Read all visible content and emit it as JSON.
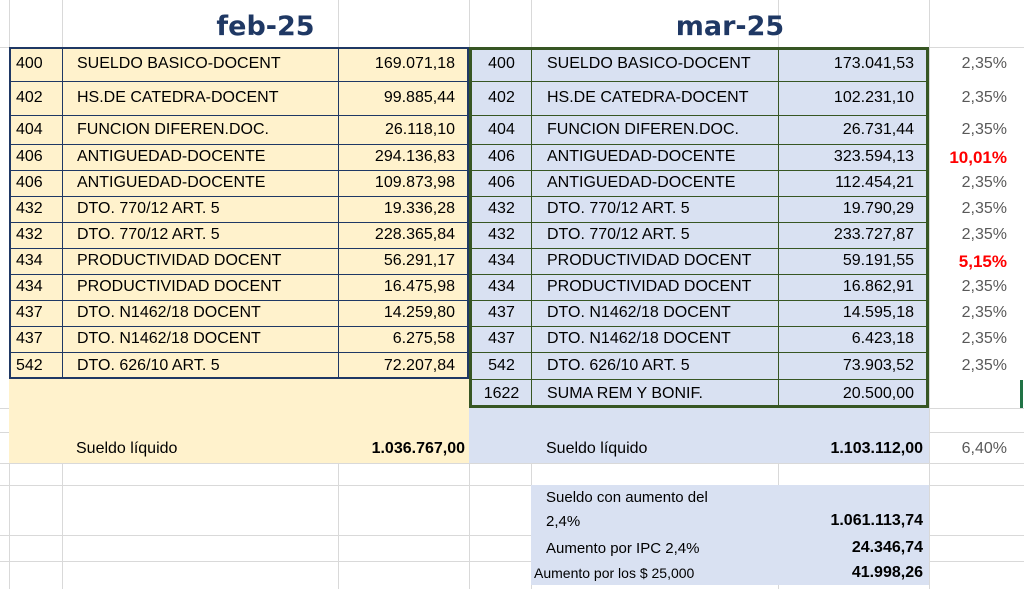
{
  "headers": {
    "feb": "feb-25",
    "mar": "mar-25"
  },
  "feb_rows": [
    {
      "code": "400",
      "concept": "SUELDO BASICO-DOCENT",
      "amount": "169.071,18"
    },
    {
      "code": "402",
      "concept": "HS.DE CATEDRA-DOCENT",
      "amount": "99.885,44"
    },
    {
      "code": "404",
      "concept": "FUNCION DIFEREN.DOC.",
      "amount": "26.118,10"
    },
    {
      "code": "406",
      "concept": "ANTIGUEDAD-DOCENTE",
      "amount": "294.136,83"
    },
    {
      "code": "406",
      "concept": "ANTIGUEDAD-DOCENTE",
      "amount": "109.873,98"
    },
    {
      "code": "432",
      "concept": "DTO. 770/12 ART. 5",
      "amount": "19.336,28"
    },
    {
      "code": "432",
      "concept": "DTO. 770/12 ART. 5",
      "amount": "228.365,84"
    },
    {
      "code": "434",
      "concept": "PRODUCTIVIDAD DOCENT",
      "amount": "56.291,17"
    },
    {
      "code": "434",
      "concept": "PRODUCTIVIDAD DOCENT",
      "amount": "16.475,98"
    },
    {
      "code": "437",
      "concept": "DTO. N1462/18 DOCENT",
      "amount": "14.259,80"
    },
    {
      "code": "437",
      "concept": "DTO. N1462/18 DOCENT",
      "amount": "6.275,58"
    },
    {
      "code": "542",
      "concept": "DTO. 626/10 ART. 5",
      "amount": "72.207,84"
    }
  ],
  "mar_rows": [
    {
      "code": "400",
      "concept": "SUELDO BASICO-DOCENT",
      "amount": "173.041,53",
      "pct": "2,35%"
    },
    {
      "code": "402",
      "concept": "HS.DE CATEDRA-DOCENT",
      "amount": "102.231,10",
      "pct": "2,35%"
    },
    {
      "code": "404",
      "concept": "FUNCION DIFEREN.DOC.",
      "amount": "26.731,44",
      "pct": "2,35%"
    },
    {
      "code": "406",
      "concept": "ANTIGUEDAD-DOCENTE",
      "amount": "323.594,13",
      "pct": "10,01%"
    },
    {
      "code": "406",
      "concept": "ANTIGUEDAD-DOCENTE",
      "amount": "112.454,21",
      "pct": "2,35%"
    },
    {
      "code": "432",
      "concept": "DTO. 770/12 ART. 5",
      "amount": "19.790,29",
      "pct": "2,35%"
    },
    {
      "code": "432",
      "concept": "DTO. 770/12 ART. 5",
      "amount": "233.727,87",
      "pct": "2,35%"
    },
    {
      "code": "434",
      "concept": "PRODUCTIVIDAD DOCENT",
      "amount": "59.191,55",
      "pct": "5,15%"
    },
    {
      "code": "434",
      "concept": "PRODUCTIVIDAD DOCENT",
      "amount": "16.862,91",
      "pct": "2,35%"
    },
    {
      "code": "437",
      "concept": "DTO. N1462/18 DOCENT",
      "amount": "14.595,18",
      "pct": "2,35%"
    },
    {
      "code": "437",
      "concept": "DTO. N1462/18 DOCENT",
      "amount": "6.423,18",
      "pct": "2,35%"
    },
    {
      "code": "542",
      "concept": "DTO. 626/10 ART. 5",
      "amount": "73.903,52",
      "pct": "2,35%"
    },
    {
      "code": "1622",
      "concept": "SUMA REM Y BONIF.",
      "amount": "20.500,00",
      "pct": ""
    }
  ],
  "highlight_pcts": [
    "10,01%",
    "5,15%"
  ],
  "feb_total": {
    "label": "Sueldo líquido",
    "amount": "1.036.767,00"
  },
  "mar_total": {
    "label": "Sueldo líquido",
    "amount": "1.103.112,00",
    "pct": "6,40%"
  },
  "extra": {
    "increase_label_line1": "Sueldo con aumento del",
    "increase_label_line2": "2,4%",
    "increase_amount": "1.061.113,74",
    "ipc_label": "Aumento por IPC 2,4%",
    "ipc_amount": "24.346,74",
    "fixed_label": "Aumento por los $ 25,000",
    "fixed_amount": "41.998,26"
  },
  "colors": {
    "feb_fill": "#fff2cc",
    "mar_fill": "#d9e1f2",
    "feb_border": "#1f3864",
    "mar_border": "#375623",
    "header_text": "#1f3864",
    "highlight_text": "#ff0000",
    "gridline": "#d9d9d9"
  }
}
